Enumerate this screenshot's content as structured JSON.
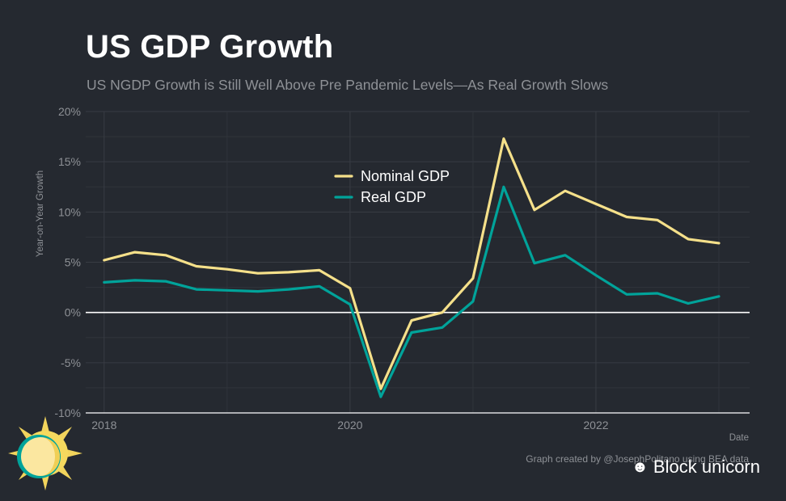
{
  "header": {
    "title": "US GDP Growth",
    "subtitle": "US NGDP Growth is Still Well Above Pre Pandemic Levels—As Real Growth Slows"
  },
  "chart_data": {
    "type": "line",
    "title": "US GDP Growth",
    "subtitle": "US NGDP Growth is Still Well Above Pre Pandemic Levels—As Real Growth Slows",
    "xlabel": "Date",
    "ylabel": "Year-on-Year Growth",
    "xlim": [
      2017.85,
      2023.25
    ],
    "ylim": [
      -10,
      20
    ],
    "x_ticks": [
      2018,
      2020,
      2022
    ],
    "x_tick_labels": [
      "2018",
      "2020",
      "2022"
    ],
    "y_ticks": [
      -10,
      -5,
      0,
      5,
      10,
      15,
      20
    ],
    "y_tick_labels": [
      "-10%",
      "-5%",
      "0%",
      "5%",
      "10%",
      "15%",
      "20%"
    ],
    "grid": true,
    "legend_position": "center",
    "x": [
      2018.0,
      2018.25,
      2018.5,
      2018.75,
      2019.0,
      2019.25,
      2019.5,
      2019.75,
      2020.0,
      2020.25,
      2020.5,
      2020.75,
      2021.0,
      2021.25,
      2021.5,
      2021.75,
      2022.0,
      2022.25,
      2022.5,
      2022.75,
      2023.0
    ],
    "series": [
      {
        "name": "Nominal GDP",
        "color": "#f5e08a",
        "values": [
          5.2,
          6.0,
          5.7,
          4.6,
          4.3,
          3.9,
          4.0,
          4.2,
          2.4,
          -7.6,
          -0.8,
          0.0,
          3.4,
          17.3,
          10.2,
          12.1,
          10.8,
          9.5,
          9.2,
          7.3,
          6.9
        ]
      },
      {
        "name": "Real GDP",
        "color": "#00a39a",
        "values": [
          3.0,
          3.2,
          3.1,
          2.3,
          2.2,
          2.1,
          2.3,
          2.6,
          0.8,
          -8.4,
          -2.0,
          -1.5,
          1.1,
          12.5,
          4.9,
          5.7,
          3.7,
          1.8,
          1.9,
          0.9,
          1.6
        ]
      }
    ],
    "caption": "Graph created by @JosephPolitano using BEA data"
  },
  "watermark": {
    "icon": "wechat-icon",
    "text": "Block unicorn"
  },
  "logo": {
    "icon": "sun-logo-icon"
  }
}
